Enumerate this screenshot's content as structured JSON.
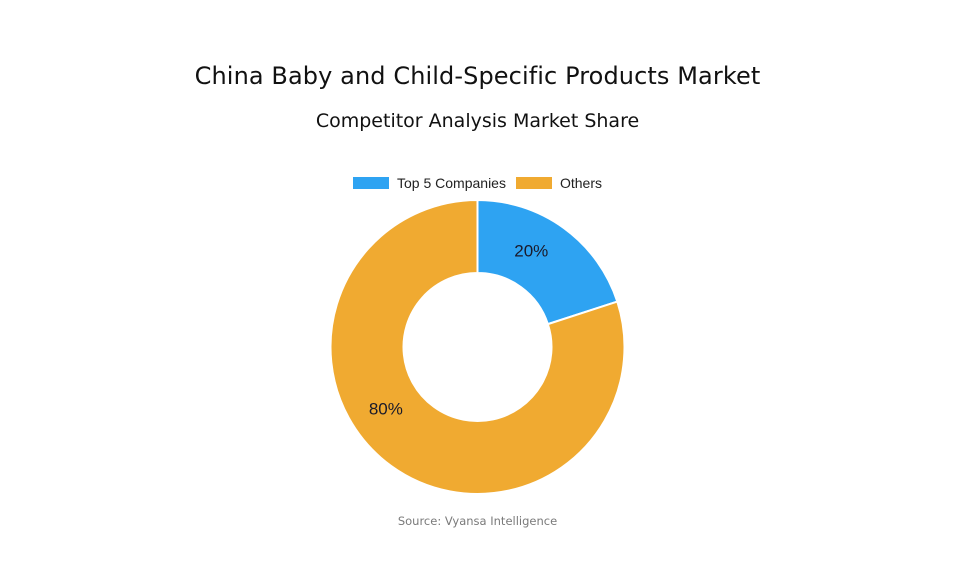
{
  "header": {
    "title": "China Baby and Child-Specific Products Market",
    "subtitle": "Competitor Analysis Market Share"
  },
  "legend": [
    {
      "label": "Top 5 Companies",
      "color": "#2ea3f2"
    },
    {
      "label": "Others",
      "color": "#f0aa31"
    }
  ],
  "footer": {
    "source": "Source: Vyansa Intelligence"
  },
  "chart_data": {
    "type": "pie",
    "variant": "donut",
    "title": "China Baby and Child-Specific Products Market",
    "subtitle": "Competitor Analysis Market Share",
    "categories": [
      "Top 5 Companies",
      "Others"
    ],
    "values": [
      20,
      80
    ],
    "labels": [
      "20%",
      "80%"
    ],
    "colors": [
      "#2ea3f2",
      "#f0aa31"
    ],
    "legend_position": "top",
    "source": "Source: Vyansa Intelligence"
  }
}
